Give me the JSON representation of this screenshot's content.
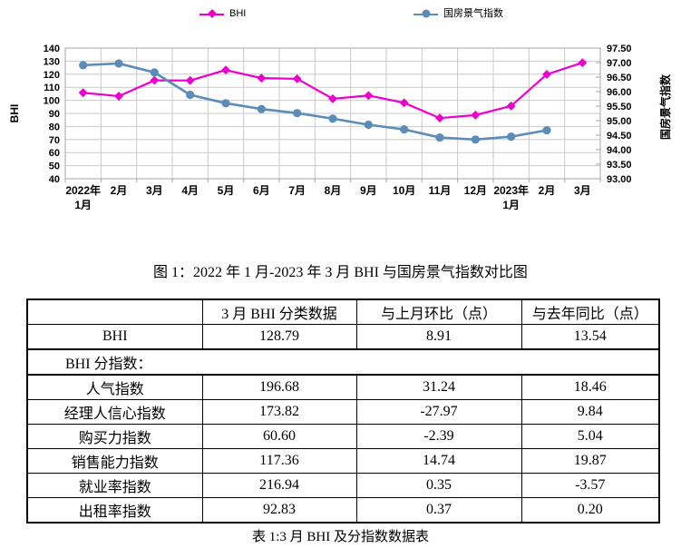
{
  "figure_caption": "图 1：2022 年 1 月-2023 年 3 月 BHI 与国房景气指数对比图",
  "chart_data": {
    "type": "line",
    "categories": [
      "2022年\n1月",
      "2月",
      "3月",
      "4月",
      "5月",
      "6月",
      "7月",
      "8月",
      "9月",
      "10月",
      "11月",
      "12月",
      "2023年\n1月",
      "2月",
      "3月"
    ],
    "series": [
      {
        "name": "BHI",
        "axis": "left_axis",
        "color": "#EE00CC",
        "marker": "diamond",
        "values": [
          105.8,
          103.2,
          115.3,
          115.2,
          123.2,
          117.0,
          116.5,
          101.2,
          103.7,
          98.1,
          86.4,
          88.7,
          95.7,
          119.88,
          128.79
        ]
      },
      {
        "name": "国房景气指数",
        "axis": "right_axis",
        "color": "#5B8DB8",
        "marker": "circle",
        "values": [
          96.91,
          96.97,
          96.66,
          95.89,
          95.6,
          95.4,
          95.26,
          95.07,
          94.86,
          94.7,
          94.42,
          94.35,
          94.45,
          94.67,
          null
        ]
      }
    ],
    "left_axis": {
      "title": "BHI",
      "min": 40,
      "max": 140,
      "step": 10
    },
    "right_axis": {
      "title": "国房景气指数",
      "min": 93.0,
      "max": 97.5,
      "step": 0.5
    },
    "grid": true,
    "legend_position": "top",
    "grid_color": "#C9C9C9",
    "axis_color": "#A6A6A6"
  },
  "table": {
    "headers": [
      "",
      "3 月 BHI 分类数据",
      "与上月环比（点）",
      "与去年同比（点）"
    ],
    "rows": [
      {
        "label": "BHI",
        "value": "128.79",
        "mom": "8.91",
        "yoy": "13.54"
      }
    ],
    "section_row": "BHI 分指数：",
    "sub_rows": [
      {
        "label": "人气指数",
        "value": "196.68",
        "mom": "31.24",
        "yoy": "18.46"
      },
      {
        "label": "经理人信心指数",
        "value": "173.82",
        "mom": "-27.97",
        "yoy": "9.84"
      },
      {
        "label": "购买力指数",
        "value": "60.60",
        "mom": "-2.39",
        "yoy": "5.04"
      },
      {
        "label": "销售能力指数",
        "value": "117.36",
        "mom": "14.74",
        "yoy": "19.87"
      },
      {
        "label": "就业率指数",
        "value": "216.94",
        "mom": "0.35",
        "yoy": "-3.57"
      },
      {
        "label": "出租率指数",
        "value": "92.83",
        "mom": "0.37",
        "yoy": "0.20"
      }
    ],
    "caption": "表 1:3 月 BHI 及分指数数据表"
  }
}
